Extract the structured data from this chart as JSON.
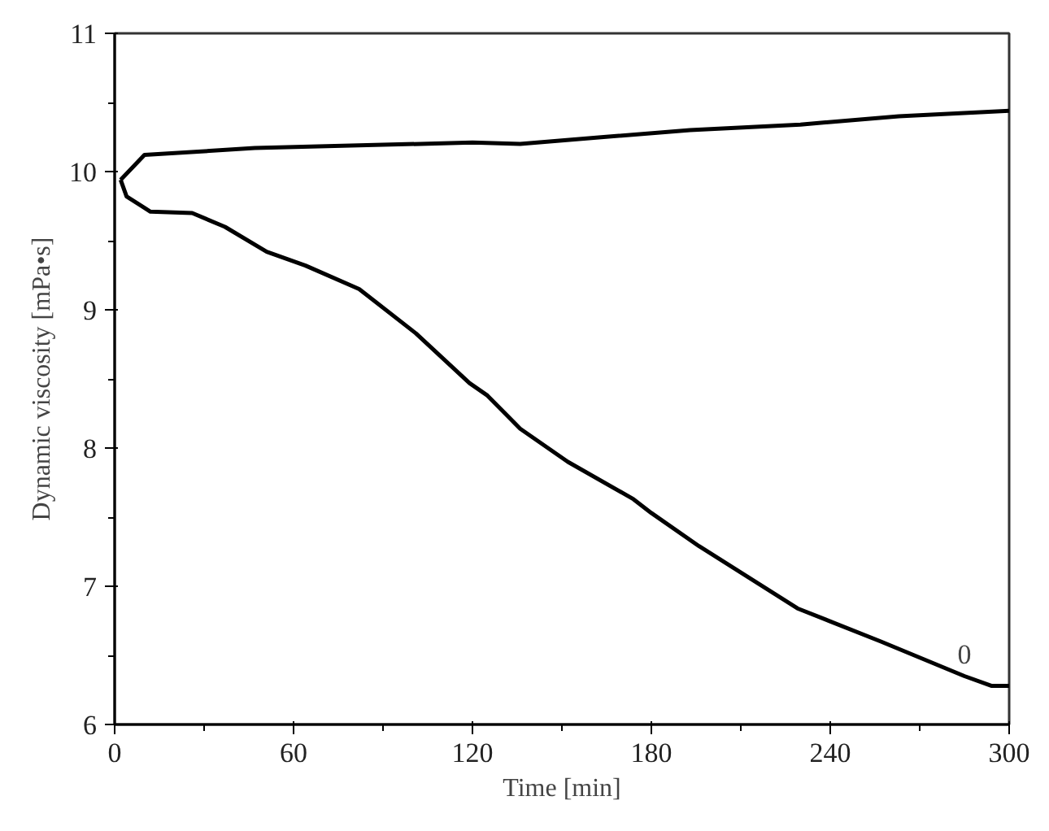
{
  "chart_data": {
    "type": "line",
    "xlabel": "Time [min]",
    "ylabel": "Dynamic viscosity [mPa•s]",
    "xlim": [
      0,
      300
    ],
    "ylim": [
      6,
      11
    ],
    "xticks": [
      0,
      60,
      120,
      180,
      240,
      300
    ],
    "yticks": [
      6,
      7,
      8,
      9,
      10,
      11
    ],
    "grid": false,
    "marker": "none",
    "line_style": "solid",
    "series": [
      {
        "color": "#000000",
        "x": [
          2,
          10,
          47,
          120,
          136,
          164,
          193,
          230,
          263,
          300
        ],
        "values": [
          9.94,
          10.12,
          10.17,
          10.21,
          10.2,
          10.25,
          10.3,
          10.34,
          10.4,
          10.44
        ]
      },
      {
        "color": "#000000",
        "x": [
          2,
          4,
          12,
          26,
          37,
          51,
          64,
          82,
          101,
          119,
          125,
          136,
          152,
          174,
          180,
          196,
          229,
          257,
          285,
          294,
          300
        ],
        "values": [
          9.94,
          9.82,
          9.71,
          9.7,
          9.6,
          9.42,
          9.32,
          9.15,
          8.83,
          8.47,
          8.38,
          8.14,
          7.9,
          7.63,
          7.53,
          7.29,
          6.84,
          6.6,
          6.35,
          6.28,
          6.28
        ]
      }
    ],
    "annotations": [
      "0"
    ]
  }
}
